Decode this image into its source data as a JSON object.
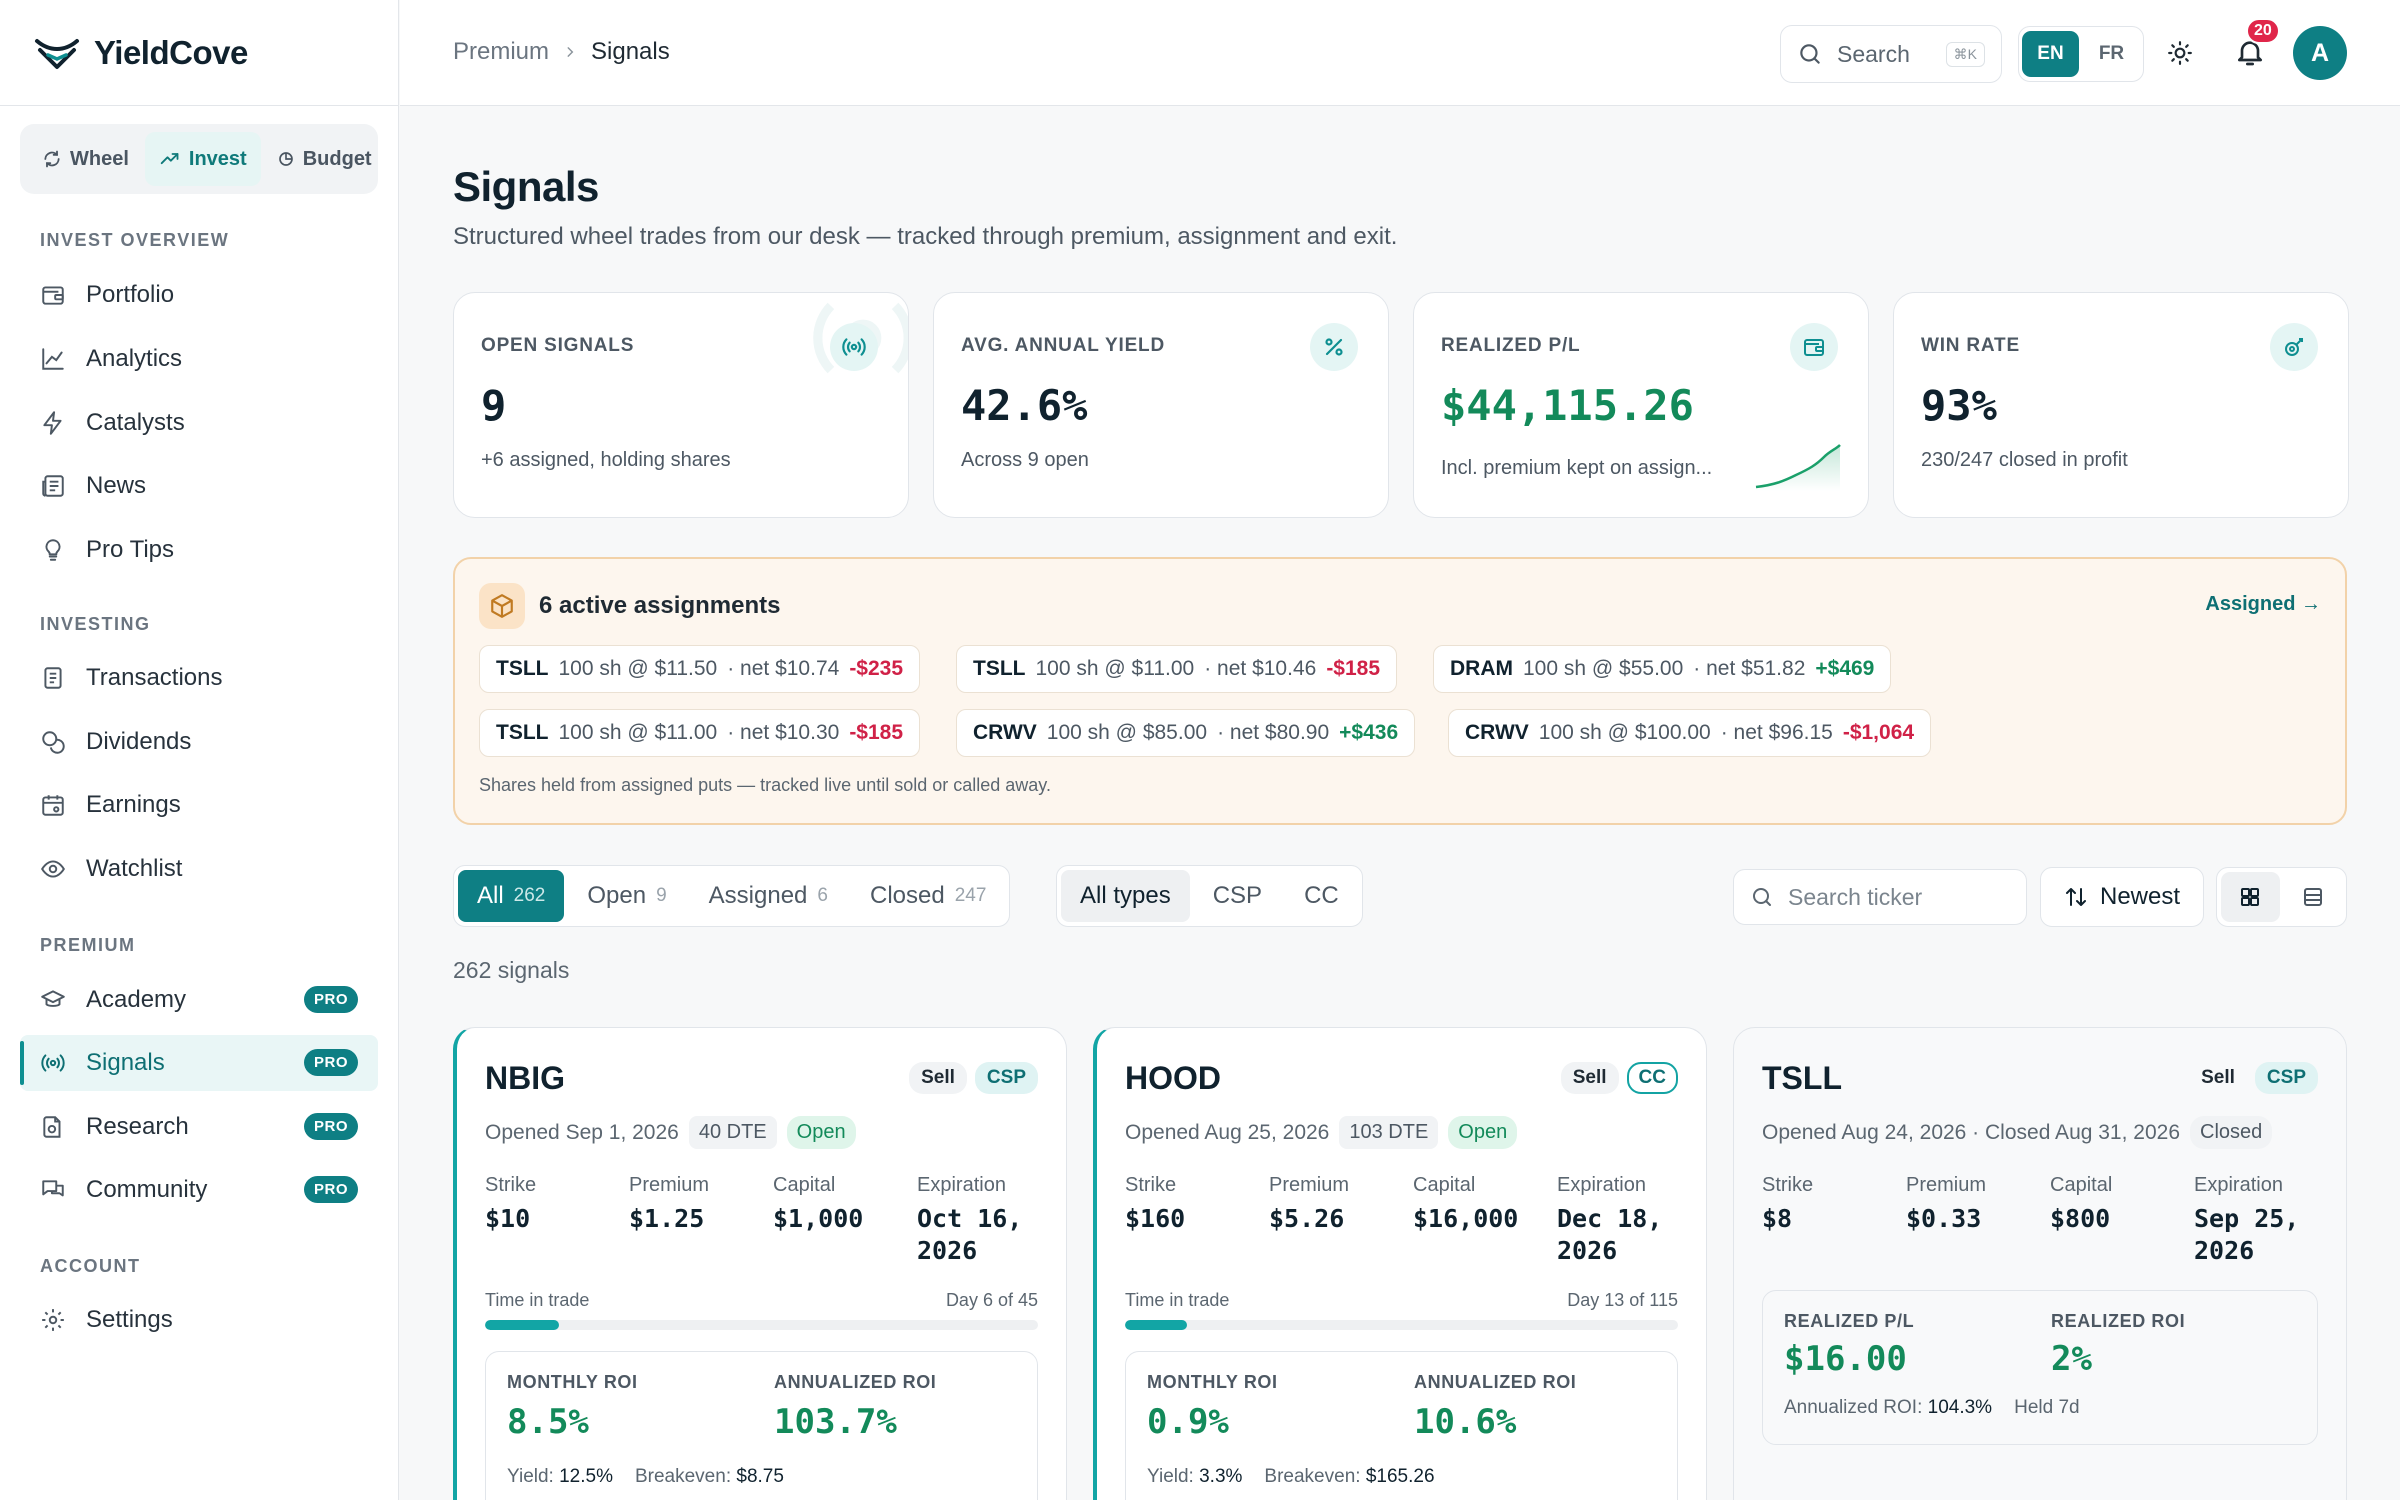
{
  "app": {
    "name": "YieldCove"
  },
  "modes": [
    {
      "label": "Wheel",
      "icon": "refresh-icon",
      "active": false
    },
    {
      "label": "Invest",
      "icon": "trend-icon",
      "active": true
    },
    {
      "label": "Budget",
      "icon": "pie-icon",
      "active": false
    }
  ],
  "sidebar": {
    "sections": {
      "overview": "INVEST OVERVIEW",
      "investing": "INVESTING",
      "premium": "PREMIUM",
      "account": "ACCOUNT"
    },
    "items": {
      "portfolio": "Portfolio",
      "analytics": "Analytics",
      "catalysts": "Catalysts",
      "news": "News",
      "protips": "Pro Tips",
      "transactions": "Transactions",
      "dividends": "Dividends",
      "earnings": "Earnings",
      "watchlist": "Watchlist",
      "academy": "Academy",
      "signals": "Signals",
      "research": "Research",
      "community": "Community",
      "settings": "Settings"
    },
    "pro_label": "PRO"
  },
  "topbar": {
    "breadcrumb": [
      "Premium",
      "Signals"
    ],
    "search_label": "Search",
    "search_kbd": "⌘K",
    "languages": [
      "EN",
      "FR"
    ],
    "active_language": "EN",
    "notifications": "20",
    "avatar_initial": "A"
  },
  "page": {
    "title": "Signals",
    "subtitle": "Structured wheel trades from our desk — tracked through premium, assignment and exit."
  },
  "kpis": [
    {
      "label": "OPEN SIGNALS",
      "value": "9",
      "sub": "+6 assigned, holding shares",
      "icon": "broadcast-icon"
    },
    {
      "label": "AVG. ANNUAL YIELD",
      "value": "42.6%",
      "sub": "Across 9 open",
      "icon": "percent-icon"
    },
    {
      "label": "REALIZED P/L",
      "value": "$44,115.26",
      "sub": "Incl. premium kept on assign...",
      "icon": "wallet-icon"
    },
    {
      "label": "WIN RATE",
      "value": "93%",
      "sub": "230/247 closed in profit",
      "icon": "target-icon"
    }
  ],
  "colors": {
    "accent": "#0e7f84",
    "positive": "#138a5a",
    "negative": "#d02147",
    "warning_bg": "#fdf6ee"
  },
  "assignments": {
    "title": "6 active assignments",
    "link": "Assigned →",
    "note": "Shares held from assigned puts — tracked live until sold or called away.",
    "chips": [
      {
        "ticker": "TSLL",
        "detail": "100 sh @ $11.50",
        "net": "· net $10.74",
        "pl": "-$235",
        "positive": false
      },
      {
        "ticker": "TSLL",
        "detail": "100 sh @ $11.00",
        "net": "· net $10.46",
        "pl": "-$185",
        "positive": false
      },
      {
        "ticker": "DRAM",
        "detail": "100 sh @ $55.00",
        "net": "· net $51.82",
        "pl": "+$469",
        "positive": true
      },
      {
        "ticker": "TSLL",
        "detail": "100 sh @ $11.00",
        "net": "· net $10.30",
        "pl": "-$185",
        "positive": false
      },
      {
        "ticker": "CRWV",
        "detail": "100 sh @ $85.00",
        "net": "· net $80.90",
        "pl": "+$436",
        "positive": true
      },
      {
        "ticker": "CRWV",
        "detail": "100 sh @ $100.00",
        "net": "· net $96.15",
        "pl": "-$1,064",
        "positive": false
      }
    ]
  },
  "filters": {
    "status": [
      {
        "label": "All",
        "count": "262",
        "active": true
      },
      {
        "label": "Open",
        "count": "9",
        "active": false
      },
      {
        "label": "Assigned",
        "count": "6",
        "active": false
      },
      {
        "label": "Closed",
        "count": "247",
        "active": false
      }
    ],
    "types": [
      "All types",
      "CSP",
      "CC"
    ],
    "active_type": "All types",
    "ticker_placeholder": "Search ticker",
    "sort": "Newest",
    "view": "grid"
  },
  "signal_count": "262 signals",
  "cards": [
    {
      "ticker": "NBIG",
      "side": "Sell",
      "type": "CSP",
      "opened": "Opened Sep 1, 2026",
      "dte": "40 DTE",
      "status": "Open",
      "strike_label": "Strike",
      "strike": "$10",
      "premium_label": "Premium",
      "premium": "$1.25",
      "capital_label": "Capital",
      "capital": "$1,000",
      "expiration_label": "Expiration",
      "expiration_line1": "Oct 16,",
      "expiration_line2": "2026",
      "time_label": "Time in trade",
      "time_value": "Day 6 of 45",
      "progress": 0.133,
      "roi_l1": "MONTHLY ROI",
      "roi_v1": "8.5%",
      "roi_l2": "ANNUALIZED ROI",
      "roi_v2": "103.7%",
      "yield_label": "Yield:",
      "yield": "12.5%",
      "breakeven_label": "Breakeven:",
      "breakeven": "$8.75"
    },
    {
      "ticker": "HOOD",
      "side": "Sell",
      "type": "CC",
      "opened": "Opened Aug 25, 2026",
      "dte": "103 DTE",
      "status": "Open",
      "strike_label": "Strike",
      "strike": "$160",
      "premium_label": "Premium",
      "premium": "$5.26",
      "capital_label": "Capital",
      "capital": "$16,000",
      "expiration_label": "Expiration",
      "expiration_line1": "Dec 18,",
      "expiration_line2": "2026",
      "time_label": "Time in trade",
      "time_value": "Day 13 of 115",
      "progress": 0.113,
      "roi_l1": "MONTHLY ROI",
      "roi_v1": "0.9%",
      "roi_l2": "ANNUALIZED ROI",
      "roi_v2": "10.6%",
      "yield_label": "Yield:",
      "yield": "3.3%",
      "breakeven_label": "Breakeven:",
      "breakeven": "$165.26"
    },
    {
      "ticker": "TSLL",
      "side": "Sell",
      "type": "CSP",
      "opened": "Opened Aug 24, 2026 · Closed Aug 31, 2026",
      "status": "Closed",
      "strike_label": "Strike",
      "strike": "$8",
      "premium_label": "Premium",
      "premium": "$0.33",
      "capital_label": "Capital",
      "capital": "$800",
      "expiration_label": "Expiration",
      "expiration_line1": "Sep 25,",
      "expiration_line2": "2026",
      "roi_l1": "REALIZED P/L",
      "roi_v1": "$16.00",
      "roi_l2": "REALIZED ROI",
      "roi_v2": "2%",
      "annualized_label": "Annualized ROI:",
      "annualized": "104.3%",
      "held": "Held 7d"
    }
  ]
}
